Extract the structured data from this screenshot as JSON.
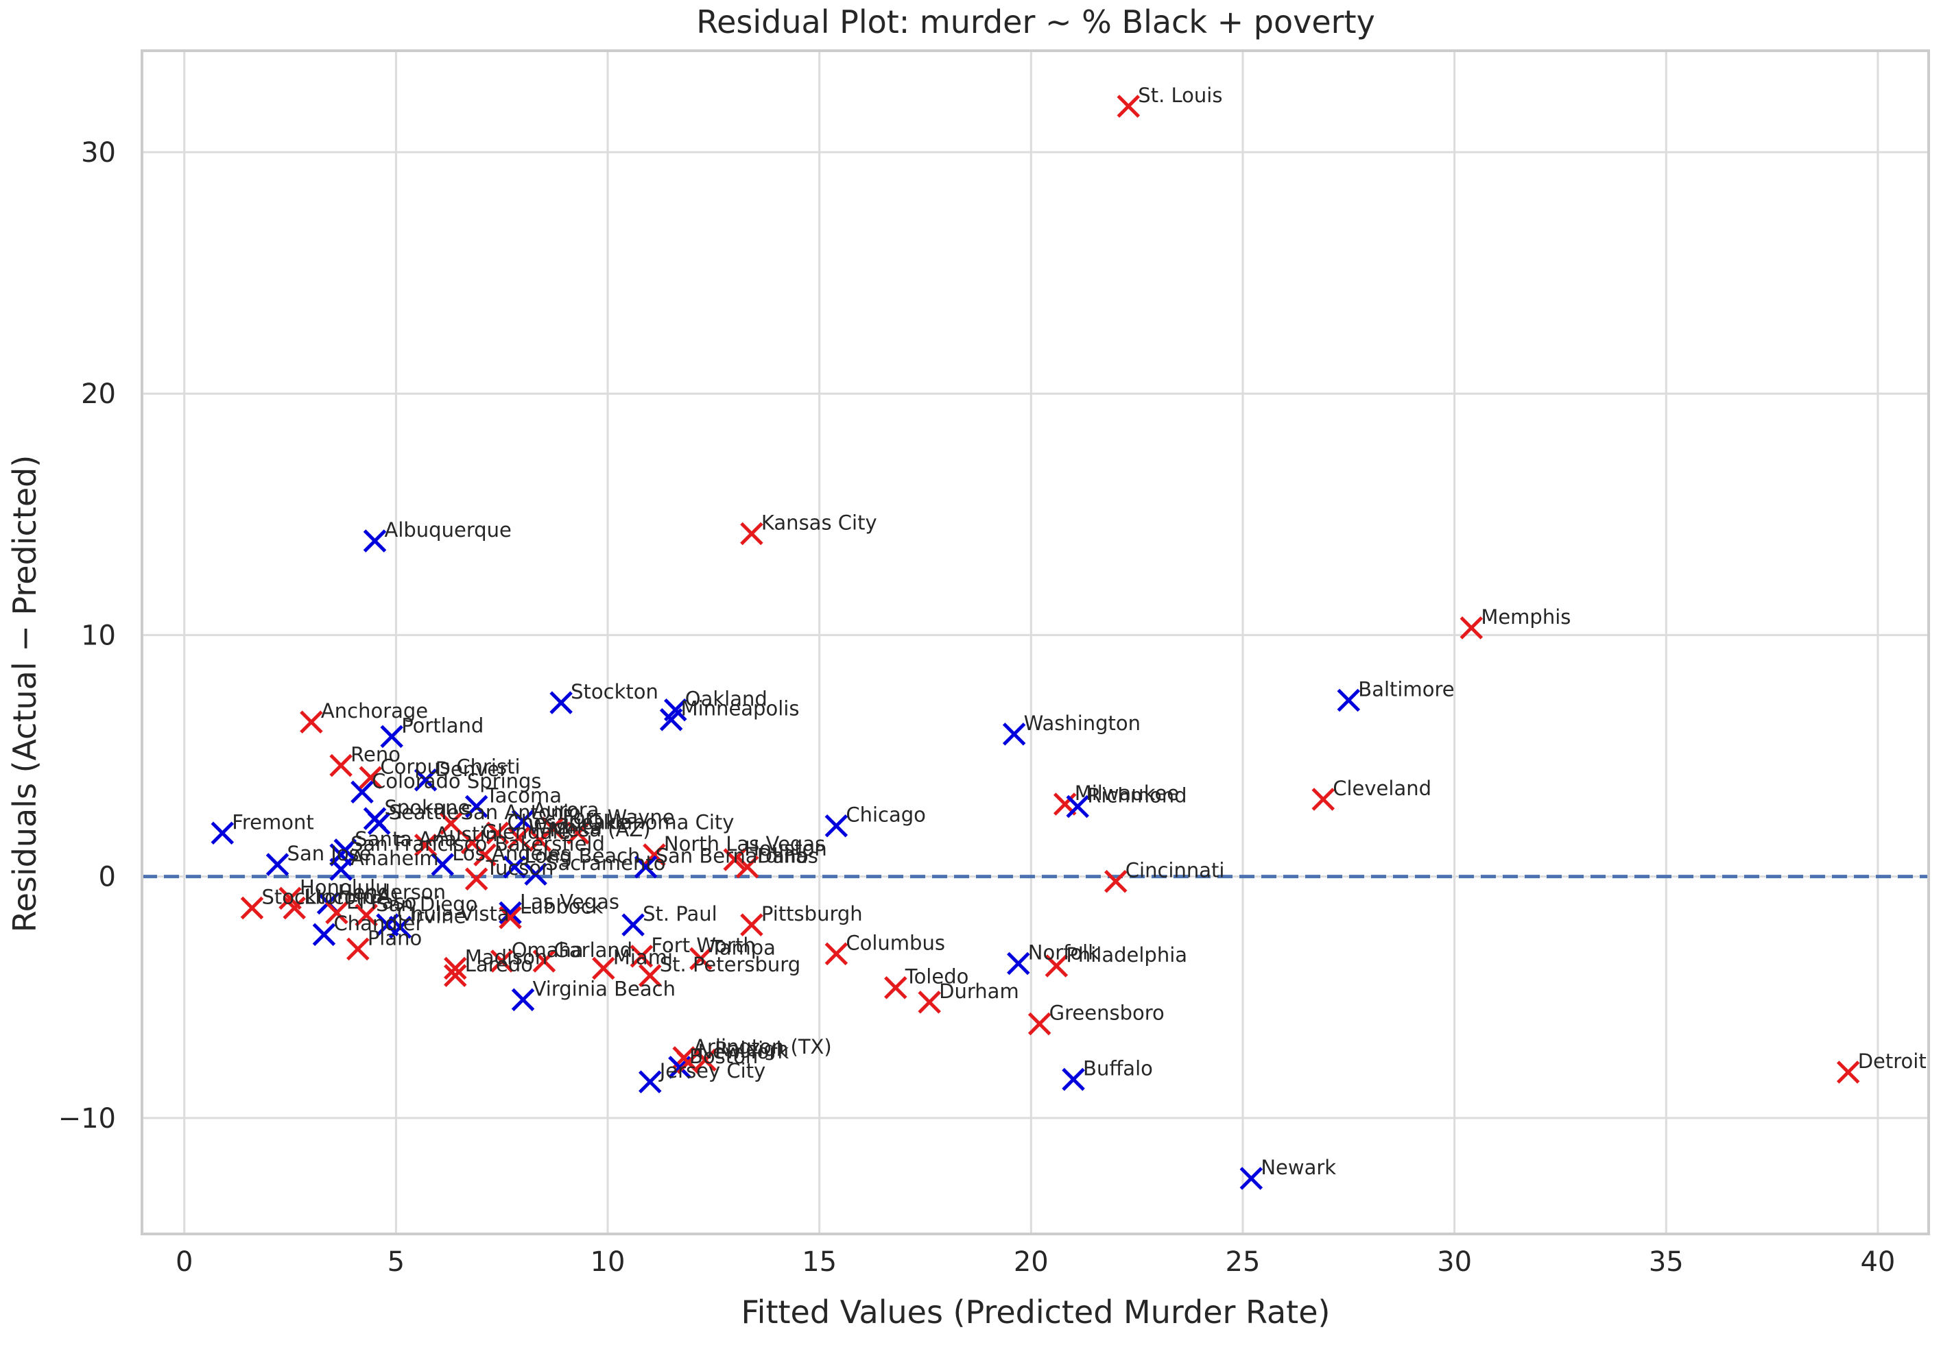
{
  "chart_data": {
    "type": "scatter",
    "title": "Residual Plot: murder ~ % Black + poverty",
    "xlabel": "Fitted Values (Predicted Murder Rate)",
    "ylabel": "Residuals (Actual − Predicted)",
    "xlim": [
      -1,
      41.2
    ],
    "ylim": [
      -14.8,
      34.2
    ],
    "xticks": [
      0,
      5,
      10,
      15,
      20,
      25,
      30,
      35,
      40
    ],
    "yticks": [
      -10,
      0,
      10,
      20,
      30
    ],
    "grid": true,
    "reference_line": {
      "y": 0,
      "style": "dashed",
      "color": "#4c72b0"
    },
    "marker": "x",
    "colors": {
      "red": "#e41a1c",
      "blue": "#0000dd"
    },
    "points": [
      {
        "label": "St. Louis",
        "x": 22.3,
        "y": 31.9,
        "color": "red"
      },
      {
        "label": "Kansas City",
        "x": 13.4,
        "y": 14.2,
        "color": "red"
      },
      {
        "label": "Albuquerque",
        "x": 4.5,
        "y": 13.9,
        "color": "blue"
      },
      {
        "label": "Memphis",
        "x": 30.4,
        "y": 10.3,
        "color": "red"
      },
      {
        "label": "Baltimore",
        "x": 27.5,
        "y": 7.3,
        "color": "blue"
      },
      {
        "label": "Stockton",
        "x": 8.9,
        "y": 7.2,
        "color": "blue"
      },
      {
        "label": "Oakland",
        "x": 11.6,
        "y": 6.9,
        "color": "blue"
      },
      {
        "label": "Minneapolis",
        "x": 11.5,
        "y": 6.5,
        "color": "blue"
      },
      {
        "label": "Anchorage",
        "x": 3.0,
        "y": 6.4,
        "color": "red"
      },
      {
        "label": "Washington",
        "x": 19.6,
        "y": 5.9,
        "color": "blue"
      },
      {
        "label": "Portland",
        "x": 4.9,
        "y": 5.8,
        "color": "blue"
      },
      {
        "label": "Reno",
        "x": 3.7,
        "y": 4.6,
        "color": "red"
      },
      {
        "label": "Corpus Christi",
        "x": 4.4,
        "y": 4.1,
        "color": "red"
      },
      {
        "label": "Denver",
        "x": 5.7,
        "y": 4.0,
        "color": "blue"
      },
      {
        "label": "Colorado Springs",
        "x": 4.2,
        "y": 3.5,
        "color": "blue"
      },
      {
        "label": "Cleveland",
        "x": 26.9,
        "y": 3.2,
        "color": "red"
      },
      {
        "label": "Milwaukee",
        "x": 20.8,
        "y": 3.0,
        "color": "red"
      },
      {
        "label": "Richmond",
        "x": 21.1,
        "y": 2.9,
        "color": "blue"
      },
      {
        "label": "Tacoma",
        "x": 6.9,
        "y": 2.9,
        "color": "blue"
      },
      {
        "label": "Aurora",
        "x": 8.0,
        "y": 2.3,
        "color": "blue"
      },
      {
        "label": "Spokane",
        "x": 4.5,
        "y": 2.4,
        "color": "blue"
      },
      {
        "label": "Seattle",
        "x": 4.6,
        "y": 2.2,
        "color": "blue"
      },
      {
        "label": "San Antonio",
        "x": 6.3,
        "y": 2.2,
        "color": "red"
      },
      {
        "label": "Chesapeake",
        "x": 7.4,
        "y": 1.8,
        "color": "red"
      },
      {
        "label": "Fort Wayne",
        "x": 8.7,
        "y": 2.0,
        "color": "red"
      },
      {
        "label": "Oklahoma City",
        "x": 9.3,
        "y": 1.8,
        "color": "red"
      },
      {
        "label": "Chicago",
        "x": 15.4,
        "y": 2.1,
        "color": "blue"
      },
      {
        "label": "Wichita",
        "x": 7.9,
        "y": 1.6,
        "color": "red"
      },
      {
        "label": "Mesa (AZ)",
        "x": 8.4,
        "y": 1.5,
        "color": "red"
      },
      {
        "label": "Fremont",
        "x": 0.9,
        "y": 1.8,
        "color": "blue"
      },
      {
        "label": "Austin",
        "x": 5.7,
        "y": 1.3,
        "color": "red"
      },
      {
        "label": "Santa Ana",
        "x": 3.8,
        "y": 1.1,
        "color": "blue"
      },
      {
        "label": "San Francisco",
        "x": 3.7,
        "y": 0.9,
        "color": "blue"
      },
      {
        "label": "Glendale",
        "x": 6.8,
        "y": 1.4,
        "color": "red"
      },
      {
        "label": "Bakersfield",
        "x": 7.1,
        "y": 0.9,
        "color": "red"
      },
      {
        "label": "North Las Vegas",
        "x": 11.1,
        "y": 0.9,
        "color": "red"
      },
      {
        "label": "Houston",
        "x": 13.0,
        "y": 0.7,
        "color": "red"
      },
      {
        "label": "Dallas",
        "x": 13.3,
        "y": 0.4,
        "color": "red"
      },
      {
        "label": "San Jose",
        "x": 2.2,
        "y": 0.5,
        "color": "blue"
      },
      {
        "label": "Anaheim",
        "x": 3.7,
        "y": 0.3,
        "color": "blue"
      },
      {
        "label": "Los Angeles",
        "x": 6.1,
        "y": 0.5,
        "color": "blue"
      },
      {
        "label": "Long Beach",
        "x": 7.8,
        "y": 0.4,
        "color": "blue"
      },
      {
        "label": "San Bernardino",
        "x": 10.9,
        "y": 0.4,
        "color": "blue"
      },
      {
        "label": "Sacramento",
        "x": 8.3,
        "y": 0.1,
        "color": "blue"
      },
      {
        "label": "Tucson",
        "x": 6.9,
        "y": -0.1,
        "color": "red"
      },
      {
        "label": "Cincinnati",
        "x": 22.0,
        "y": -0.2,
        "color": "red"
      },
      {
        "label": "Honolulu",
        "x": 2.5,
        "y": -0.9,
        "color": "red"
      },
      {
        "label": "Henderson",
        "x": 3.4,
        "y": -1.1,
        "color": "blue"
      },
      {
        "label": "Stockton (CA)",
        "x": 1.6,
        "y": -1.3,
        "color": "red"
      },
      {
        "label": "Lincoln",
        "x": 2.6,
        "y": -1.3,
        "color": "red"
      },
      {
        "label": "El Paso",
        "x": 3.6,
        "y": -1.5,
        "color": "red"
      },
      {
        "label": "Las Vegas",
        "x": 7.7,
        "y": -1.5,
        "color": "blue"
      },
      {
        "label": "Lubbock",
        "x": 7.7,
        "y": -1.7,
        "color": "red"
      },
      {
        "label": "San Diego",
        "x": 4.3,
        "y": -1.6,
        "color": "red"
      },
      {
        "label": "Chula Vista",
        "x": 4.8,
        "y": -2.0,
        "color": "blue"
      },
      {
        "label": "Irvine",
        "x": 5.1,
        "y": -2.1,
        "color": "blue"
      },
      {
        "label": "Chandler",
        "x": 3.3,
        "y": -2.4,
        "color": "blue"
      },
      {
        "label": "Plano",
        "x": 4.1,
        "y": -3.0,
        "color": "red"
      },
      {
        "label": "St. Paul",
        "x": 10.6,
        "y": -2.0,
        "color": "blue"
      },
      {
        "label": "Pittsburgh",
        "x": 13.4,
        "y": -2.0,
        "color": "red"
      },
      {
        "label": "Columbus",
        "x": 15.4,
        "y": -3.2,
        "color": "red"
      },
      {
        "label": "Fort Worth",
        "x": 10.8,
        "y": -3.3,
        "color": "red"
      },
      {
        "label": "Tampa",
        "x": 12.2,
        "y": -3.4,
        "color": "red"
      },
      {
        "label": "Omaha",
        "x": 7.5,
        "y": -3.5,
        "color": "red"
      },
      {
        "label": "Garland",
        "x": 8.5,
        "y": -3.5,
        "color": "red"
      },
      {
        "label": "Miami",
        "x": 9.9,
        "y": -3.8,
        "color": "red"
      },
      {
        "label": "Madison",
        "x": 6.4,
        "y": -3.8,
        "color": "red"
      },
      {
        "label": "Laredo",
        "x": 6.4,
        "y": -4.1,
        "color": "red"
      },
      {
        "label": "St. Petersburg",
        "x": 11.0,
        "y": -4.1,
        "color": "red"
      },
      {
        "label": "Norfolk",
        "x": 19.7,
        "y": -3.6,
        "color": "blue"
      },
      {
        "label": "Philadelphia",
        "x": 20.6,
        "y": -3.7,
        "color": "red"
      },
      {
        "label": "Toledo",
        "x": 16.8,
        "y": -4.6,
        "color": "red"
      },
      {
        "label": "Durham",
        "x": 17.6,
        "y": -5.2,
        "color": "red"
      },
      {
        "label": "Virginia Beach",
        "x": 8.0,
        "y": -5.1,
        "color": "blue"
      },
      {
        "label": "Greensboro",
        "x": 20.2,
        "y": -6.1,
        "color": "red"
      },
      {
        "label": "Arlington (TX)",
        "x": 11.8,
        "y": -7.5,
        "color": "red"
      },
      {
        "label": "Raleigh",
        "x": 12.3,
        "y": -7.6,
        "color": "red"
      },
      {
        "label": "Boston",
        "x": 11.7,
        "y": -7.9,
        "color": "blue"
      },
      {
        "label": "New York",
        "x": 11.9,
        "y": -7.7,
        "color": "red"
      },
      {
        "label": "Buffalo",
        "x": 21.0,
        "y": -8.4,
        "color": "blue"
      },
      {
        "label": "Jersey City",
        "x": 11.0,
        "y": -8.5,
        "color": "blue"
      },
      {
        "label": "Detroit",
        "x": 39.3,
        "y": -8.1,
        "color": "red"
      },
      {
        "label": "Newark",
        "x": 25.2,
        "y": -12.5,
        "color": "blue"
      }
    ]
  }
}
